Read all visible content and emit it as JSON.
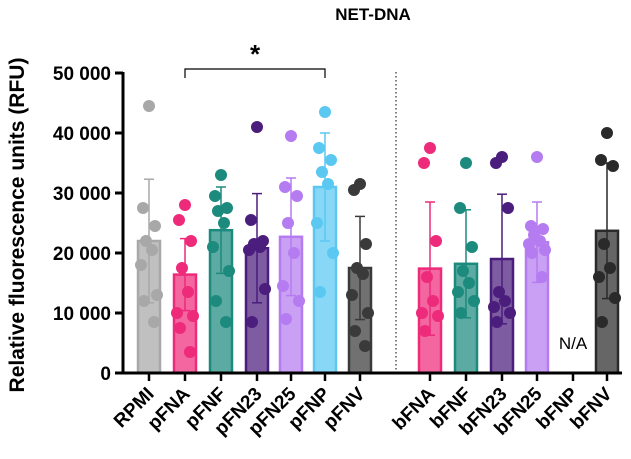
{
  "chart_data": {
    "type": "bar",
    "title": "NET-DNA",
    "ylabel": "Relative fluorescence units (RFU)",
    "xlabel": "",
    "ylim": [
      0,
      50000
    ],
    "yticks": [
      0,
      10000,
      20000,
      30000,
      40000,
      50000
    ],
    "ytick_labels": [
      "0",
      "10 000",
      "20 000",
      "30 000",
      "40 000",
      "50 000"
    ],
    "categories": [
      "RPMI",
      "pFNA",
      "pFNF",
      "pFN23",
      "pFN25",
      "pFNP",
      "pFNV",
      "bFNA",
      "bFNF",
      "bFN23",
      "bFN25",
      "bFNP",
      "bFNV"
    ],
    "bars": [
      {
        "name": "RPMI",
        "mean": 22000,
        "sd": 10300,
        "color": "#a8a8a8",
        "points": [
          44500,
          27500,
          24500,
          22000,
          20500,
          18000,
          13000,
          12000,
          8500
        ]
      },
      {
        "name": "pFNA",
        "mean": 16400,
        "sd": 6000,
        "color": "#ee2a7b",
        "points": [
          28000,
          25500,
          22000,
          17500,
          13500,
          10000,
          9500,
          7500,
          3500
        ]
      },
      {
        "name": "pFNF",
        "mean": 23800,
        "sd": 7200,
        "color": "#1d8a7e",
        "points": [
          33000,
          29500,
          27500,
          27000,
          25000,
          21000,
          17000,
          12000,
          8500
        ]
      },
      {
        "name": "pFN23",
        "mean": 20800,
        "sd": 9100,
        "color": "#4b1d7d",
        "points": [
          41000,
          25500,
          22000,
          21500,
          21000,
          20500,
          14000,
          8500
        ]
      },
      {
        "name": "pFN25",
        "mean": 22700,
        "sd": 9800,
        "color": "#b57bf0",
        "points": [
          39500,
          31000,
          29500,
          25000,
          20000,
          14500,
          12000,
          9000
        ]
      },
      {
        "name": "pFNP",
        "mean": 31000,
        "sd": 9000,
        "color": "#5bc8f2",
        "points": [
          43500,
          37500,
          35500,
          33500,
          31500,
          25000,
          20000,
          13500
        ]
      },
      {
        "name": "pFNV",
        "mean": 17500,
        "sd": 8600,
        "color": "#3a3a3a",
        "points": [
          31500,
          30500,
          21500,
          17500,
          16500,
          13000,
          10000,
          7000,
          4500
        ]
      },
      {
        "name": "bFNA",
        "mean": 17400,
        "sd": 11100,
        "color": "#ee2a7b",
        "points": [
          37500,
          35000,
          22000,
          16000,
          12000,
          10000,
          9500,
          7000
        ]
      },
      {
        "name": "bFNF",
        "mean": 18200,
        "sd": 9000,
        "color": "#1d8a7e",
        "points": [
          35000,
          27500,
          21000,
          17000,
          15000,
          13500,
          12000,
          10000
        ]
      },
      {
        "name": "bFN23",
        "mean": 19000,
        "sd": 10800,
        "color": "#4b1d7d",
        "points": [
          36000,
          35000,
          27500,
          13500,
          12000,
          11000,
          10000,
          8500
        ]
      },
      {
        "name": "bFN25",
        "mean": 21800,
        "sd": 6700,
        "color": "#b57bf0",
        "points": [
          36000,
          24500,
          24000,
          23000,
          22000,
          21500,
          20500,
          20000,
          16000
        ]
      },
      {
        "name": "bFNP",
        "mean": null,
        "sd": null,
        "color": "#000000",
        "points": [],
        "label": "N/A"
      },
      {
        "name": "bFNV",
        "mean": 23700,
        "sd": 11300,
        "color": "#2a2a2a",
        "points": [
          40000,
          35500,
          34500,
          21500,
          17500,
          16000,
          12500,
          8500
        ]
      }
    ],
    "significance": [
      {
        "from": "pFNA",
        "to": "pFNP",
        "label": "*"
      }
    ],
    "grid": false,
    "legend": "none"
  }
}
